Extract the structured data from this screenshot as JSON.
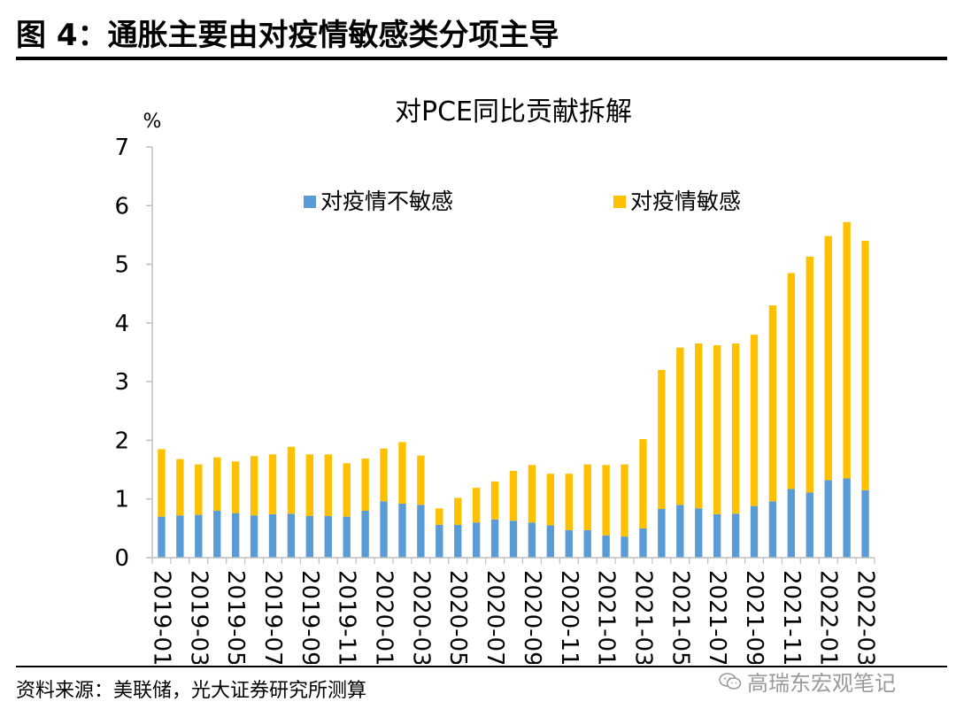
{
  "figure": {
    "title": "图 4：通胀主要由对疫情敏感类分项主导",
    "source": "资料来源：美联储，光大证券研究所测算",
    "watermark": "高瑞东宏观笔记"
  },
  "colors": {
    "insensitive": "#5b9bd5",
    "sensitive": "#ffc000"
  },
  "chart_data": {
    "type": "bar",
    "stacked": true,
    "title": "对PCE同比贡献拆解",
    "ylabel": "%",
    "xlabel": "",
    "ylim": [
      0,
      7
    ],
    "yticks": [
      0,
      1,
      2,
      3,
      4,
      5,
      6,
      7
    ],
    "legend_position": "top",
    "categories": [
      "2019-01",
      "2019-02",
      "2019-03",
      "2019-04",
      "2019-05",
      "2019-06",
      "2019-07",
      "2019-08",
      "2019-09",
      "2019-10",
      "2019-11",
      "2019-12",
      "2020-01",
      "2020-02",
      "2020-03",
      "2020-04",
      "2020-05",
      "2020-06",
      "2020-07",
      "2020-08",
      "2020-09",
      "2020-10",
      "2020-11",
      "2020-12",
      "2021-01",
      "2021-02",
      "2021-03",
      "2021-04",
      "2021-05",
      "2021-06",
      "2021-07",
      "2021-08",
      "2021-09",
      "2021-10",
      "2021-11",
      "2021-12",
      "2022-01",
      "2022-02",
      "2022-03"
    ],
    "tick_labels": [
      "2019-01",
      "2019-03",
      "2019-05",
      "2019-07",
      "2019-09",
      "2019-11",
      "2020-01",
      "2020-03",
      "2020-05",
      "2020-07",
      "2020-09",
      "2020-11",
      "2021-01",
      "2021-03",
      "2021-05",
      "2021-07",
      "2021-09",
      "2021-11",
      "2022-01",
      "2022-03"
    ],
    "series": [
      {
        "name": "对疫情不敏感",
        "values": [
          0.7,
          0.72,
          0.73,
          0.8,
          0.76,
          0.72,
          0.74,
          0.75,
          0.71,
          0.71,
          0.7,
          0.8,
          0.96,
          0.92,
          0.9,
          0.56,
          0.56,
          0.6,
          0.65,
          0.63,
          0.6,
          0.55,
          0.47,
          0.47,
          0.38,
          0.36,
          0.5,
          0.83,
          0.9,
          0.84,
          0.74,
          0.75,
          0.88,
          0.96,
          1.17,
          1.11,
          1.32,
          1.35,
          1.15
        ]
      },
      {
        "name": "对疫情敏感",
        "values": [
          1.15,
          0.96,
          0.86,
          0.91,
          0.88,
          1.01,
          1.02,
          1.14,
          1.05,
          1.05,
          0.91,
          0.89,
          0.9,
          1.05,
          0.84,
          0.28,
          0.46,
          0.59,
          0.65,
          0.85,
          0.98,
          0.88,
          0.96,
          1.12,
          1.2,
          1.23,
          1.52,
          2.37,
          2.68,
          2.81,
          2.88,
          2.9,
          2.92,
          3.34,
          3.68,
          4.02,
          4.16,
          4.37,
          4.25
        ]
      }
    ]
  }
}
